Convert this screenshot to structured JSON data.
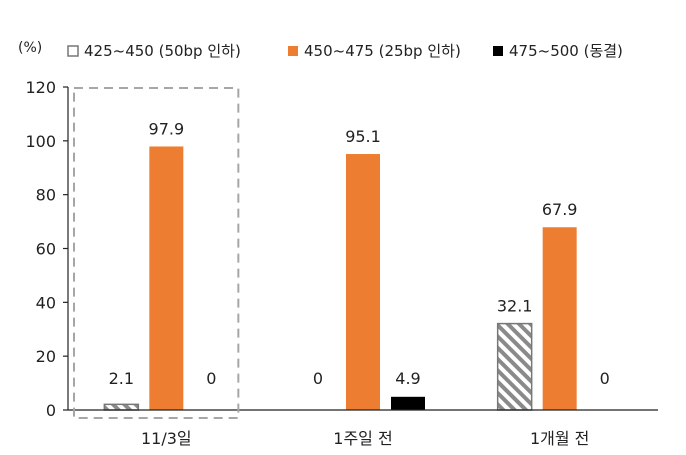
{
  "chart_data": {
    "type": "bar",
    "unit_label": "(%)",
    "categories": [
      "11/3일",
      "1주일 전",
      "1개월 전"
    ],
    "series": [
      {
        "name": "425~450 (50bp 인하)",
        "values": [
          2.1,
          0,
          32.1
        ],
        "style": "hatched",
        "color": "#888888"
      },
      {
        "name": "450~475 (25bp 인하)",
        "values": [
          97.9,
          95.1,
          67.9
        ],
        "style": "solid",
        "color": "#ED7D31"
      },
      {
        "name": "475~500 (동결)",
        "values": [
          0,
          4.9,
          0
        ],
        "style": "solid",
        "color": "#000000"
      }
    ],
    "data_labels": [
      [
        "2.1",
        "0",
        "32.1"
      ],
      [
        "97.9",
        "95.1",
        "67.9"
      ],
      [
        "0",
        "4.9",
        "0"
      ]
    ],
    "ylim": [
      0,
      120
    ],
    "yticks": [
      "0",
      "20",
      "40",
      "60",
      "80",
      "100",
      "120"
    ],
    "xlabel": "",
    "ylabel": "",
    "grid": false,
    "legend_position": "top",
    "highlight_category": "11/3일"
  }
}
